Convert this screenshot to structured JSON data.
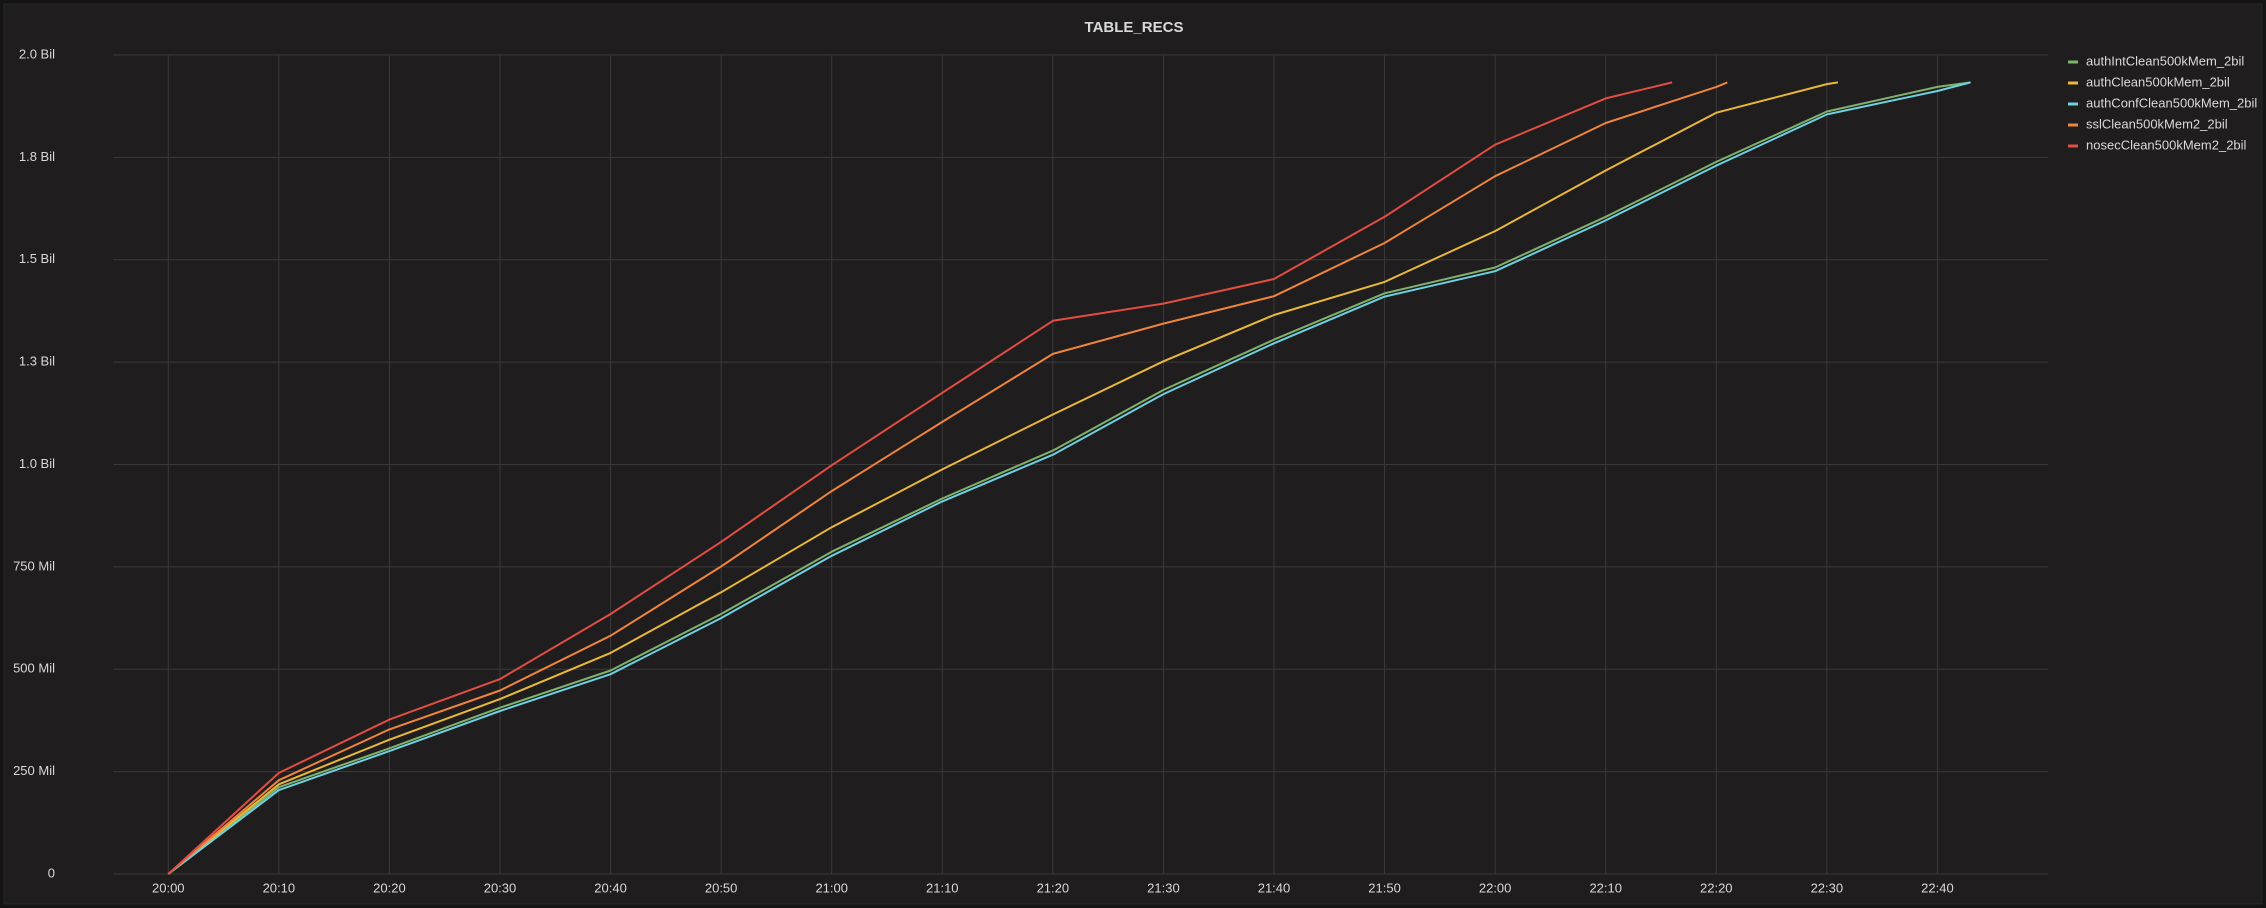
{
  "chart_data": {
    "type": "line",
    "title": "TABLE_RECS",
    "xlim": [
      "19:55",
      "22:50"
    ],
    "xticks": [
      "20:00",
      "20:10",
      "20:20",
      "20:30",
      "20:40",
      "20:50",
      "21:00",
      "21:10",
      "21:20",
      "21:30",
      "21:40",
      "21:50",
      "22:00",
      "22:10",
      "22:20",
      "22:30",
      "22:40"
    ],
    "ylim": [
      0,
      2000000000
    ],
    "yticks": [
      0,
      {
        "value": 250000000,
        "label": "250 Mil"
      },
      {
        "value": 500000000,
        "label": "500 Mil"
      },
      {
        "value": 750000000,
        "label": "750 Mil"
      },
      {
        "value": 1000000000,
        "label": "1.0 Bil"
      },
      {
        "value": 1250000000,
        "label": "1.3 Bil"
      },
      {
        "value": 1500000000,
        "label": "1.5 Bil"
      },
      {
        "value": 1750000000,
        "label": "1.8 Bil"
      },
      {
        "value": 2000000000,
        "label": "2.0 Bil"
      }
    ],
    "grid": true,
    "legend": "right",
    "series": [
      {
        "name": "authIntClean500kMem_2bil",
        "color": "#7eb26d",
        "x": [
          "20:00",
          "20:10",
          "20:20",
          "20:30",
          "20:40",
          "20:50",
          "21:00",
          "21:10",
          "21:20",
          "21:30",
          "21:40",
          "21:50",
          "22:00",
          "22:10",
          "22:20",
          "22:30",
          "22:40",
          "22:43"
        ],
        "values": [
          0,
          212000000,
          307000000,
          406000000,
          497000000,
          635000000,
          787000000,
          917000000,
          1034000000,
          1182000000,
          1305000000,
          1418000000,
          1481000000,
          1605000000,
          1739000000,
          1862000000,
          1922000000,
          1933000000
        ]
      },
      {
        "name": "authClean500kMem_2bil",
        "color": "#eab839",
        "x": [
          "20:00",
          "20:10",
          "20:20",
          "20:30",
          "20:40",
          "20:50",
          "21:00",
          "21:10",
          "21:20",
          "21:30",
          "21:40",
          "21:50",
          "22:00",
          "22:10",
          "22:20",
          "22:30",
          "22:31"
        ],
        "values": [
          0,
          219000000,
          328000000,
          427000000,
          540000000,
          688000000,
          847000000,
          988000000,
          1122000000,
          1252000000,
          1365000000,
          1446000000,
          1570000000,
          1718000000,
          1859000000,
          1929000000,
          1933000000
        ]
      },
      {
        "name": "authConfClean500kMem_2bil",
        "color": "#6ed0e0",
        "x": [
          "20:00",
          "20:10",
          "20:20",
          "20:30",
          "20:40",
          "20:50",
          "21:00",
          "21:10",
          "21:20",
          "21:30",
          "21:40",
          "21:50",
          "22:00",
          "22:10",
          "22:20",
          "22:30",
          "22:40",
          "22:43"
        ],
        "values": [
          0,
          205000000,
          300000000,
          398000000,
          488000000,
          625000000,
          777000000,
          910000000,
          1024000000,
          1172000000,
          1296000000,
          1410000000,
          1472000000,
          1596000000,
          1730000000,
          1855000000,
          1912000000,
          1933000000
        ]
      },
      {
        "name": "sslClean500kMem2_2bil",
        "color": "#ef843c",
        "x": [
          "20:00",
          "20:10",
          "20:20",
          "20:30",
          "20:40",
          "20:50",
          "21:00",
          "21:10",
          "21:20",
          "21:30",
          "21:40",
          "21:50",
          "22:00",
          "22:10",
          "22:20",
          "22:21"
        ],
        "values": [
          0,
          229000000,
          353000000,
          448000000,
          582000000,
          751000000,
          935000000,
          1104000000,
          1270000000,
          1344000000,
          1411000000,
          1541000000,
          1704000000,
          1834000000,
          1922000000,
          1933000000
        ]
      },
      {
        "name": "nosecClean500kMem2_2bil",
        "color": "#e24d42",
        "x": [
          "20:00",
          "20:10",
          "20:20",
          "20:30",
          "20:40",
          "20:50",
          "21:00",
          "21:10",
          "21:20",
          "21:30",
          "21:40",
          "21:50",
          "22:00",
          "22:10",
          "22:16"
        ],
        "values": [
          0,
          247000000,
          377000000,
          476000000,
          635000000,
          811000000,
          998000000,
          1175000000,
          1351000000,
          1393000000,
          1453000000,
          1605000000,
          1781000000,
          1894000000,
          1933000000
        ]
      }
    ]
  }
}
